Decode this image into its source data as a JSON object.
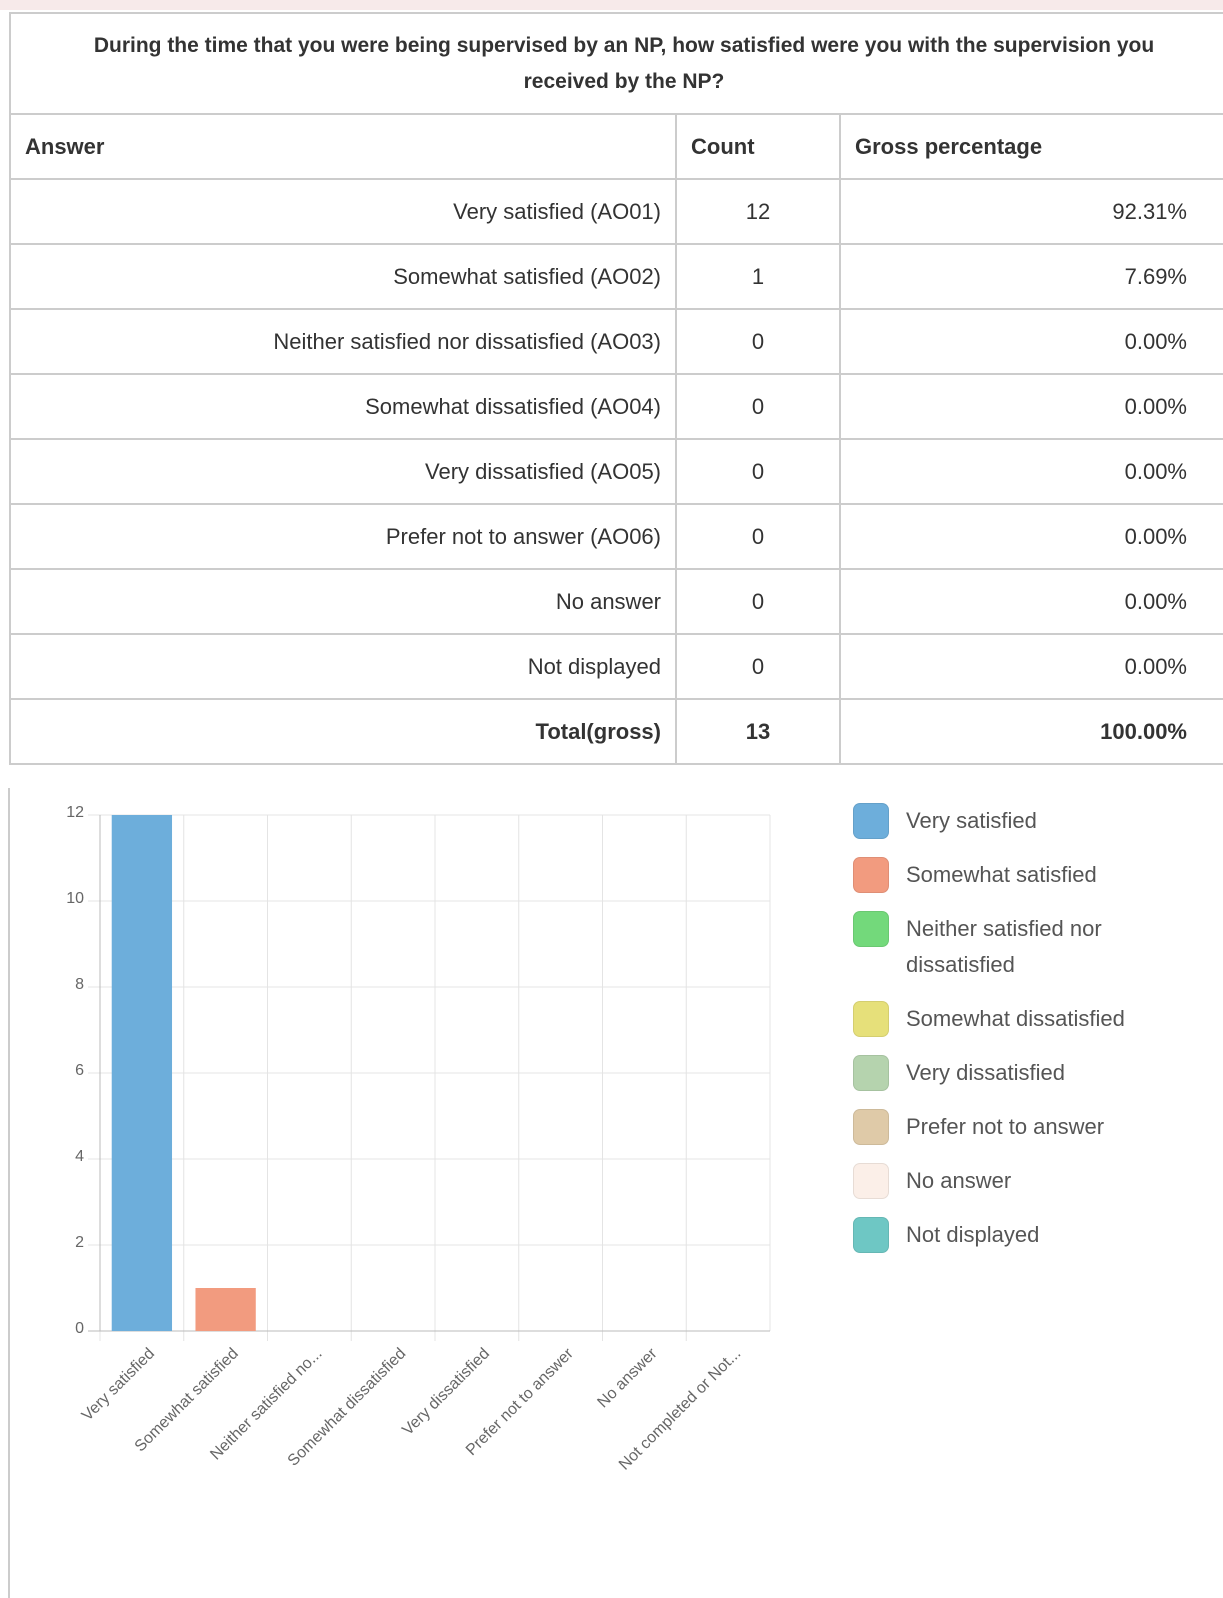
{
  "table": {
    "title": "During the time that you were being supervised by an NP, how satisfied were you with the supervision you received by the NP?",
    "headers": [
      "Answer",
      "Count",
      "Gross percentage"
    ],
    "rows": [
      [
        "Very satisfied (AO01)",
        12,
        "92.31%"
      ],
      [
        "Somewhat satisfied (AO02)",
        1,
        "7.69%"
      ],
      [
        "Neither satisfied nor dissatisfied (AO03)",
        0,
        "0.00%"
      ],
      [
        "Somewhat dissatisfied (AO04)",
        0,
        "0.00%"
      ],
      [
        "Very dissatisfied (AO05)",
        0,
        "0.00%"
      ],
      [
        "Prefer not to answer (AO06)",
        0,
        "0.00%"
      ],
      [
        "No answer",
        0,
        "0.00%"
      ],
      [
        "Not displayed",
        0,
        "0.00%"
      ]
    ],
    "total": [
      "Total(gross)",
      13,
      "100.00%"
    ]
  },
  "chart_data": {
    "type": "bar",
    "categories": [
      "Very satisfied",
      "Somewhat satisfied",
      "Neither satisfied no...",
      "Somewhat dissatisfied",
      "Very dissatisfied",
      "Prefer not to answer",
      "No answer",
      "Not completed or Not..."
    ],
    "values": [
      12,
      1,
      0,
      0,
      0,
      0,
      0,
      0
    ],
    "colors": [
      "#6daedb",
      "#f29b7f",
      "#73d97b",
      "#e6e07a",
      "#b5d3ae",
      "#dfcaa8",
      "#fbefe8",
      "#6ec7c4"
    ],
    "legend": [
      "Very satisfied",
      "Somewhat satisfied",
      "Neither satisfied nor dissatisfied",
      "Somewhat dissatisfied",
      "Very dissatisfied",
      "Prefer not to answer",
      "No answer",
      "Not displayed"
    ],
    "ylim": [
      0,
      12
    ],
    "yticks": [
      0,
      2,
      4,
      6,
      8,
      10,
      12
    ],
    "grid": true
  }
}
